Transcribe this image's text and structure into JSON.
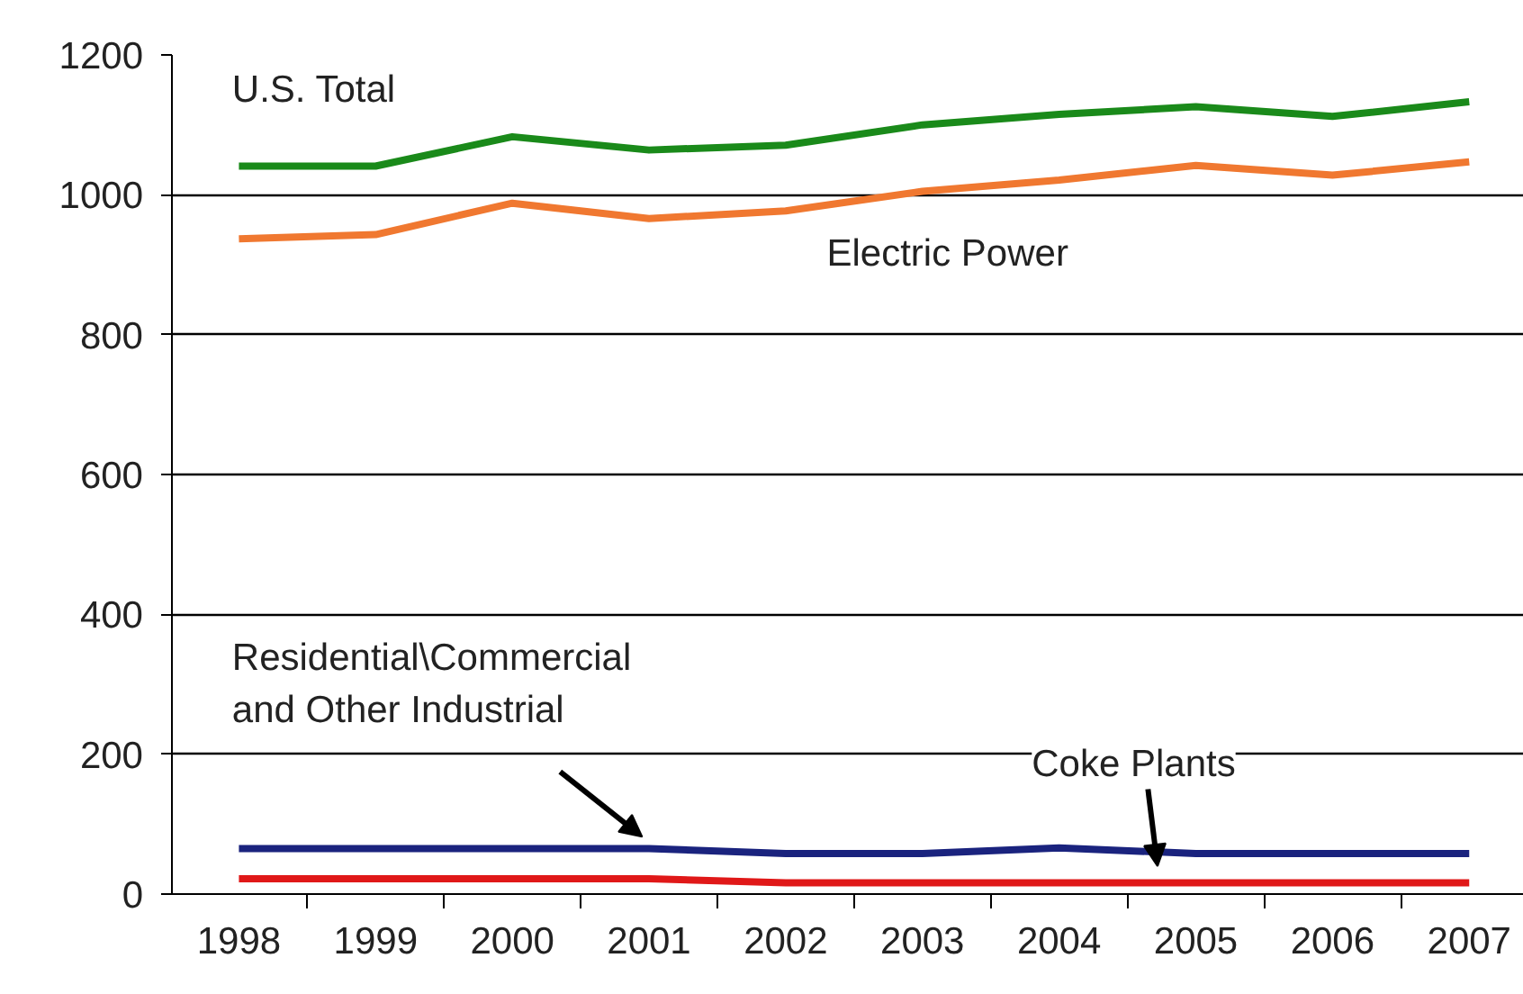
{
  "chart_data": {
    "type": "line",
    "categories": [
      "1998",
      "1999",
      "2000",
      "2001",
      "2002",
      "2003",
      "2004",
      "2005",
      "2006",
      "2007"
    ],
    "series": [
      {
        "name": "U.S. Total",
        "color": "#1a8a1a",
        "values": [
          1041,
          1041,
          1083,
          1064,
          1071,
          1100,
          1115,
          1126,
          1112,
          1133
        ]
      },
      {
        "name": "Electric Power",
        "color": "#f07830",
        "values": [
          937,
          943,
          988,
          966,
          977,
          1005,
          1021,
          1042,
          1028,
          1047
        ]
      },
      {
        "name": "Residential\\Commercial\nand Other Industrial",
        "color": "#1a237e",
        "values": [
          65,
          65,
          65,
          65,
          58,
          58,
          66,
          58,
          58,
          58
        ]
      },
      {
        "name": "Coke Plants",
        "color": "#e01818",
        "values": [
          22,
          22,
          22,
          22,
          16,
          16,
          16,
          16,
          16,
          16
        ]
      }
    ],
    "ylim": [
      0,
      1200
    ],
    "yticks": [
      0,
      200,
      400,
      600,
      800,
      1000,
      1200
    ],
    "grid": "y",
    "marker": "none",
    "line_style": "solid"
  }
}
